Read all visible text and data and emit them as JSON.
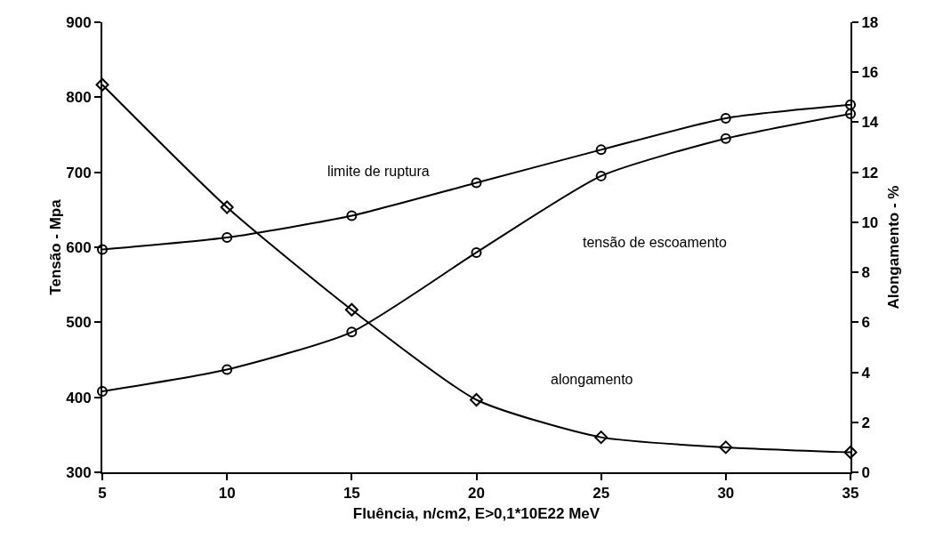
{
  "chart_data": {
    "type": "line",
    "xlabel": "Fluência, n/cm2, E>0,1*10E22 MeV",
    "ylabel": "Tensão - Mpa",
    "y2label": "Alongamento - %",
    "x": [
      5,
      10,
      15,
      20,
      25,
      30,
      35
    ],
    "series": [
      {
        "name": "limite de ruptura",
        "color": "#000000",
        "marker": "circle",
        "values": [
          597,
          613,
          642,
          686,
          730,
          772,
          790
        ]
      },
      {
        "name": "tensão de escoamento",
        "color": "#000000",
        "marker": "circle",
        "values": [
          408,
          437,
          487,
          593,
          695,
          745,
          778
        ]
      },
      {
        "name": "alongamento",
        "color": "#000000",
        "marker": "diamond",
        "axis": "y2",
        "values": [
          15.5,
          10.6,
          6.5,
          2.9,
          1.4,
          1.0,
          0.8
        ]
      }
    ],
    "xlim": [
      5,
      35
    ],
    "xticks": [
      5,
      10,
      15,
      20,
      25,
      30,
      35
    ],
    "ylim": [
      300,
      900
    ],
    "yticks": [
      300,
      400,
      500,
      600,
      700,
      800,
      900
    ],
    "y2lim": [
      0,
      18
    ],
    "y2ticks": [
      0,
      2,
      4,
      6,
      8,
      10,
      12,
      14,
      16,
      18
    ],
    "grid": false,
    "legend": false,
    "line_style": "solid"
  }
}
